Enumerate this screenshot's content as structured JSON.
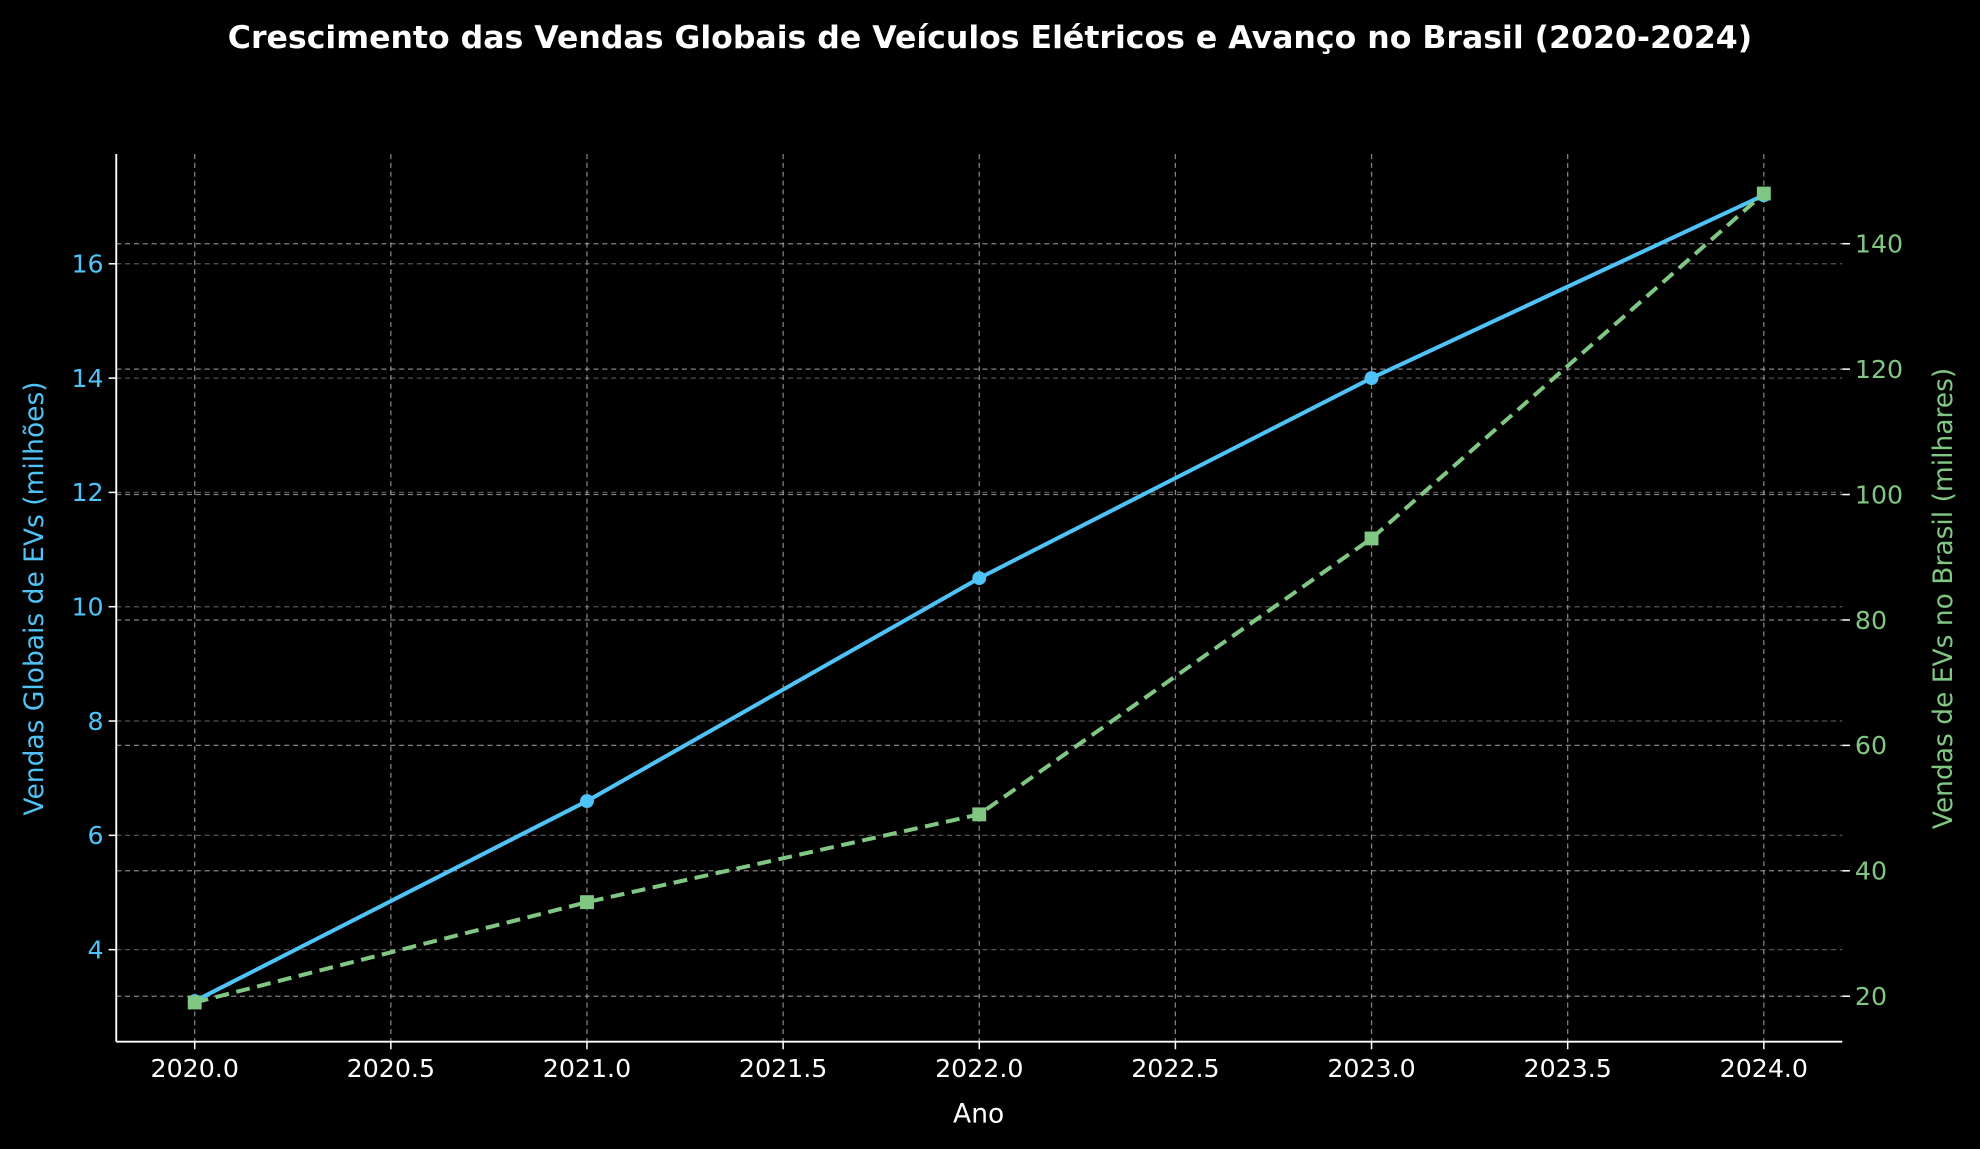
{
  "chart_data": {
    "type": "line",
    "title": "Crescimento das Vendas Globais de Veículos Elétricos e Avanço no Brasil (2020-2024)",
    "xlabel": "Ano",
    "ylabel_left": "Vendas Globais de EVs (milhões)",
    "ylabel_right": "Vendas de EVs no Brasil (milhares)",
    "x": [
      2020,
      2021,
      2022,
      2023,
      2024
    ],
    "xlim": [
      2019.8,
      2024.2
    ],
    "xticks": [
      2020.0,
      2020.5,
      2021.0,
      2021.5,
      2022.0,
      2022.5,
      2023.0,
      2023.5,
      2024.0
    ],
    "xtick_labels": [
      "2020.0",
      "2020.5",
      "2021.0",
      "2021.5",
      "2022.0",
      "2022.5",
      "2023.0",
      "2023.5",
      "2024.0"
    ],
    "ylim_left": [
      2.39,
      17.92
    ],
    "yticks_left": [
      4,
      6,
      8,
      10,
      12,
      14,
      16
    ],
    "ytick_labels_left": [
      "4",
      "6",
      "8",
      "10",
      "12",
      "14",
      "16"
    ],
    "ylim_right": [
      12.75,
      154.3
    ],
    "yticks_right": [
      20,
      40,
      60,
      80,
      100,
      120,
      140
    ],
    "ytick_labels_right": [
      "20",
      "40",
      "60",
      "80",
      "100",
      "120",
      "140"
    ],
    "grid": true,
    "series": [
      {
        "axis": "left",
        "values": [
          3.1,
          6.6,
          10.5,
          14.0,
          17.2
        ],
        "color": "#4fc3f7",
        "style": "solid",
        "marker": "circle"
      },
      {
        "axis": "right",
        "values": [
          19,
          35,
          49,
          93,
          148
        ],
        "color": "#81c784",
        "style": "dashed",
        "marker": "square"
      }
    ],
    "colors": {
      "background": "#000000",
      "text": "#ffffff",
      "left_axis": "#4fc3f7",
      "right_axis": "#81c784"
    }
  }
}
